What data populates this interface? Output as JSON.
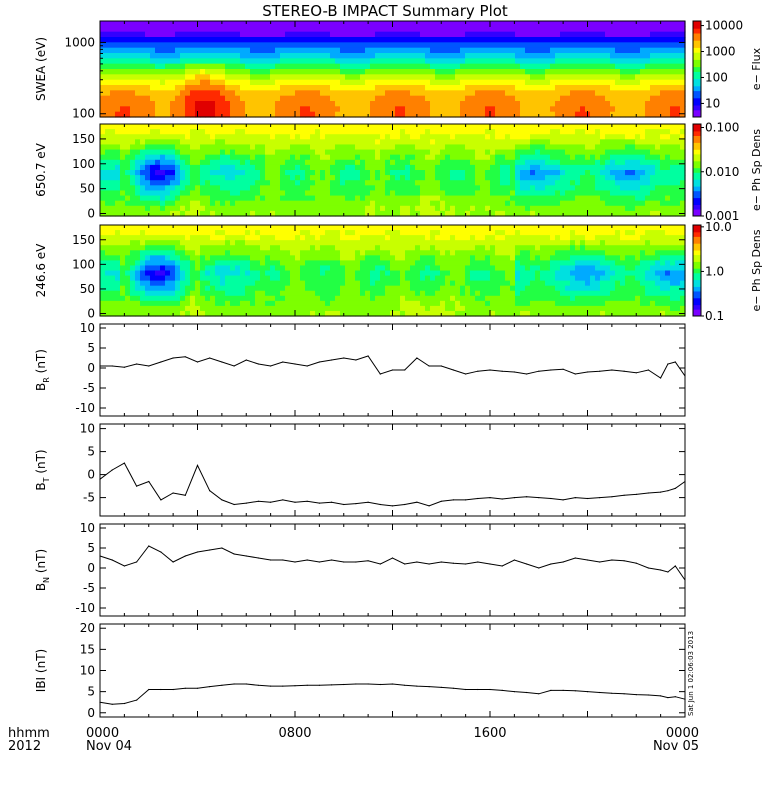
{
  "title": "STEREO-B IMPACT Summary Plot",
  "stamp": "Sat Jun 1 02:06:03 2013",
  "time_axis": {
    "ticks": [
      {
        "hour": 0,
        "label": "0000",
        "sub": "Nov 04"
      },
      {
        "hour": 8,
        "label": "0800",
        "sub": ""
      },
      {
        "hour": 16,
        "label": "1600",
        "sub": ""
      },
      {
        "hour": 24,
        "label": "0000",
        "sub": "Nov 05"
      }
    ],
    "left_top": "hhmm",
    "left_bottom": "2012",
    "range_hours": [
      0,
      24
    ]
  },
  "colors": {
    "rainbow": [
      "#7a00ff",
      "#3300ff",
      "#0000ff",
      "#0055ff",
      "#00aaff",
      "#00e0e0",
      "#00ffa0",
      "#22ff44",
      "#7dff00",
      "#c8ff00",
      "#ffff00",
      "#ffc400",
      "#ff8000",
      "#ff2a00",
      "#e00000"
    ]
  },
  "chart_data": [
    {
      "type": "heatmap",
      "ylabel": "SWEA (eV)",
      "yscale": "log",
      "ylim": [
        90,
        2000
      ],
      "yticks": [
        {
          "v": 100,
          "label": "100"
        },
        {
          "v": 1000,
          "label": "1000"
        }
      ],
      "colorbar": {
        "label": "e− Flux",
        "scale": "log",
        "range": [
          3,
          15000
        ],
        "ticks": [
          {
            "v": 10,
            "label": "10"
          },
          {
            "v": 100,
            "label": "100"
          },
          {
            "v": 1000,
            "label": "1000"
          },
          {
            "v": 10000,
            "label": "10000"
          }
        ]
      }
    },
    {
      "type": "heatmap",
      "ylabel": "650.7 eV",
      "yscale": "linear",
      "ylim": [
        -5,
        180
      ],
      "yticks": [
        {
          "v": 0,
          "label": "0"
        },
        {
          "v": 50,
          "label": "50"
        },
        {
          "v": 100,
          "label": "100"
        },
        {
          "v": 150,
          "label": "150"
        }
      ],
      "colorbar": {
        "label": "e− Ph Sp Dens",
        "scale": "log",
        "range": [
          0.001,
          0.12
        ],
        "ticks": [
          {
            "v": 0.001,
            "label": "0.001"
          },
          {
            "v": 0.01,
            "label": "0.010"
          },
          {
            "v": 0.1,
            "label": "0.100"
          }
        ]
      }
    },
    {
      "type": "heatmap",
      "ylabel": "246.6 eV",
      "yscale": "linear",
      "ylim": [
        -5,
        180
      ],
      "yticks": [
        {
          "v": 0,
          "label": "0"
        },
        {
          "v": 50,
          "label": "50"
        },
        {
          "v": 100,
          "label": "100"
        },
        {
          "v": 150,
          "label": "150"
        }
      ],
      "colorbar": {
        "label": "e− Ph Sp Dens",
        "scale": "log",
        "range": [
          0.1,
          11
        ],
        "ticks": [
          {
            "v": 0.1,
            "label": "0.1"
          },
          {
            "v": 1,
            "label": "1.0"
          },
          {
            "v": 10,
            "label": "10.0"
          }
        ]
      }
    },
    {
      "type": "line",
      "ylabel": "B",
      "ysub": "R",
      "yunit": "(nT)",
      "ylim": [
        -12,
        11
      ],
      "yticks": [
        -10,
        -5,
        0,
        5,
        10
      ],
      "x": [
        0,
        0.5,
        1,
        1.5,
        2,
        2.5,
        3,
        3.5,
        4,
        4.5,
        5,
        5.5,
        6,
        6.5,
        7,
        7.5,
        8,
        8.5,
        9,
        9.5,
        10,
        10.5,
        11,
        11.5,
        12,
        12.5,
        13,
        13.5,
        14,
        14.5,
        15,
        15.5,
        16,
        16.5,
        17,
        17.5,
        18,
        18.5,
        19,
        19.5,
        20,
        20.5,
        21,
        21.5,
        22,
        22.5,
        23,
        23.3,
        23.6,
        24
      ],
      "y": [
        0.5,
        0.5,
        0.2,
        1.0,
        0.5,
        1.5,
        2.5,
        2.8,
        1.5,
        2.5,
        1.5,
        0.5,
        2.0,
        1.0,
        0.5,
        1.5,
        1.0,
        0.5,
        1.5,
        2.0,
        2.5,
        2.0,
        3.0,
        -1.5,
        -0.5,
        -0.5,
        2.5,
        0.5,
        0.5,
        -0.5,
        -1.5,
        -0.8,
        -0.5,
        -0.8,
        -1.0,
        -1.5,
        -0.8,
        -0.5,
        -0.3,
        -1.5,
        -1.0,
        -0.8,
        -0.5,
        -0.8,
        -1.2,
        -0.5,
        -2.5,
        1.0,
        1.5,
        -2.0
      ]
    },
    {
      "type": "line",
      "ylabel": "B",
      "ysub": "T",
      "yunit": "(nT)",
      "ylim": [
        -9,
        11
      ],
      "yticks": [
        -5,
        0,
        5,
        10
      ],
      "x": [
        0,
        0.5,
        1,
        1.5,
        2,
        2.5,
        3,
        3.5,
        4,
        4.5,
        5,
        5.5,
        6,
        6.5,
        7,
        7.5,
        8,
        8.5,
        9,
        9.5,
        10,
        10.5,
        11,
        11.5,
        12,
        12.5,
        13,
        13.5,
        14,
        14.5,
        15,
        15.5,
        16,
        16.5,
        17,
        17.5,
        18,
        18.5,
        19,
        19.5,
        20,
        20.5,
        21,
        21.5,
        22,
        22.5,
        23,
        23.3,
        23.6,
        24
      ],
      "y": [
        -1.0,
        1.0,
        2.5,
        -2.5,
        -1.5,
        -5.5,
        -4.0,
        -4.5,
        2.0,
        -3.5,
        -5.5,
        -6.5,
        -6.2,
        -5.8,
        -6.0,
        -5.5,
        -6.0,
        -5.8,
        -6.2,
        -6.0,
        -6.5,
        -6.3,
        -6.0,
        -6.5,
        -6.8,
        -6.5,
        -6.0,
        -6.8,
        -5.8,
        -5.5,
        -5.5,
        -5.2,
        -5.0,
        -5.3,
        -5.0,
        -4.8,
        -5.0,
        -5.2,
        -5.5,
        -5.0,
        -5.2,
        -5.0,
        -4.8,
        -4.5,
        -4.3,
        -4.0,
        -3.8,
        -3.5,
        -3.0,
        -1.5
      ]
    },
    {
      "type": "line",
      "ylabel": "B",
      "ysub": "N",
      "yunit": "(nT)",
      "ylim": [
        -12,
        11
      ],
      "yticks": [
        -10,
        -5,
        0,
        5,
        10
      ],
      "x": [
        0,
        0.5,
        1,
        1.5,
        2,
        2.5,
        3,
        3.5,
        4,
        4.5,
        5,
        5.5,
        6,
        6.5,
        7,
        7.5,
        8,
        8.5,
        9,
        9.5,
        10,
        10.5,
        11,
        11.5,
        12,
        12.5,
        13,
        13.5,
        14,
        14.5,
        15,
        15.5,
        16,
        16.5,
        17,
        17.5,
        18,
        18.5,
        19,
        19.5,
        20,
        20.5,
        21,
        21.5,
        22,
        22.5,
        23,
        23.3,
        23.6,
        24
      ],
      "y": [
        3.0,
        2.0,
        0.5,
        1.5,
        5.5,
        4.0,
        1.5,
        3.0,
        4.0,
        4.5,
        5.0,
        3.5,
        3.0,
        2.5,
        2.0,
        2.0,
        1.5,
        2.0,
        1.5,
        2.0,
        1.5,
        1.5,
        1.8,
        1.0,
        2.5,
        1.0,
        1.5,
        1.0,
        1.5,
        1.2,
        1.0,
        1.5,
        1.0,
        0.5,
        2.0,
        1.0,
        0.0,
        1.0,
        1.5,
        2.5,
        2.0,
        1.5,
        2.0,
        1.8,
        1.2,
        0.0,
        -0.5,
        -1.0,
        0.5,
        -3.0
      ]
    },
    {
      "type": "line",
      "ylabel": "IBI",
      "ysub": "",
      "yunit": "(nT)",
      "ylim": [
        -1,
        21
      ],
      "yticks": [
        0,
        5,
        10,
        15,
        20
      ],
      "x": [
        0,
        0.5,
        1,
        1.5,
        2,
        2.5,
        3,
        3.5,
        4,
        4.5,
        5,
        5.5,
        6,
        6.5,
        7,
        7.5,
        8,
        8.5,
        9,
        9.5,
        10,
        10.5,
        11,
        11.5,
        12,
        12.5,
        13,
        13.5,
        14,
        14.5,
        15,
        15.5,
        16,
        16.5,
        17,
        17.5,
        18,
        18.5,
        19,
        19.5,
        20,
        20.5,
        21,
        21.5,
        22,
        22.5,
        23,
        23.3,
        23.6,
        24
      ],
      "y": [
        2.5,
        2.0,
        2.2,
        3.0,
        5.5,
        5.5,
        5.5,
        5.8,
        5.8,
        6.2,
        6.5,
        6.8,
        6.8,
        6.5,
        6.3,
        6.3,
        6.4,
        6.5,
        6.5,
        6.6,
        6.7,
        6.8,
        6.8,
        6.7,
        6.8,
        6.5,
        6.3,
        6.2,
        6.0,
        5.8,
        5.5,
        5.5,
        5.5,
        5.3,
        5.0,
        4.8,
        4.5,
        5.3,
        5.3,
        5.2,
        5.0,
        4.8,
        4.6,
        4.5,
        4.3,
        4.2,
        4.0,
        3.6,
        3.8,
        3.2
      ]
    }
  ]
}
